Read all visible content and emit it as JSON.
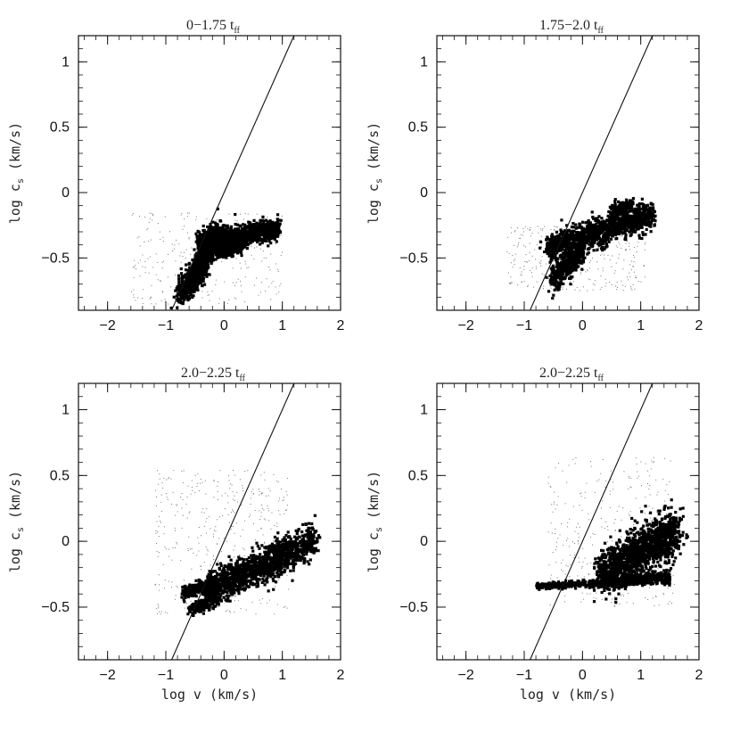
{
  "figure": {
    "xlabel": "log v (km/s)",
    "ylabel": "log c",
    "ylabel_sub": "s",
    "ylabel_unit": " (km/s)"
  },
  "chart_data": [
    {
      "type": "scatter",
      "title": "0−1.75 t",
      "title_sub": "ff",
      "xlim": [
        -2.5,
        2.0
      ],
      "ylim": [
        -0.9,
        1.2
      ],
      "xticks": [
        -2,
        -1,
        0,
        1,
        2
      ],
      "yticks": [
        -0.5,
        0,
        0.5,
        1
      ],
      "xticklabels": [
        "−2",
        "−1",
        "0",
        "1",
        "2"
      ],
      "yticklabels": [
        "−0.5",
        "0",
        "0.5",
        "1"
      ],
      "show_xlabel": false,
      "reference_line": {
        "x": [
          -0.9,
          1.2
        ],
        "y": [
          -0.9,
          1.2
        ]
      },
      "clusters": [
        {
          "x": [
            -0.45,
            0.95
          ],
          "y": [
            -0.38,
            -0.28
          ],
          "n": 1100,
          "spread": 0.03
        },
        {
          "x": [
            -0.55,
            -0.15
          ],
          "y": [
            -0.65,
            -0.35
          ],
          "n": 800,
          "spread": 0.05
        },
        {
          "x": [
            -0.8,
            -0.3
          ],
          "y": [
            -0.78,
            -0.55
          ],
          "n": 300,
          "spread": 0.05
        },
        {
          "x": [
            -0.15,
            0.35
          ],
          "y": [
            -0.47,
            -0.4
          ],
          "n": 250,
          "spread": 0.02
        }
      ],
      "sparse": {
        "x": [
          -1.6,
          1.0
        ],
        "y": [
          -0.85,
          -0.15
        ],
        "n": 260
      }
    },
    {
      "type": "scatter",
      "title": "1.75−2.0 t",
      "title_sub": "ff",
      "xlim": [
        -2.5,
        2.0
      ],
      "ylim": [
        -0.9,
        1.2
      ],
      "xticks": [
        -2,
        -1,
        0,
        1,
        2
      ],
      "yticks": [
        -0.5,
        0,
        0.5,
        1
      ],
      "xticklabels": [
        "−2",
        "−1",
        "0",
        "1",
        "2"
      ],
      "yticklabels": [
        "−0.5",
        "0",
        "0.5",
        "1"
      ],
      "show_xlabel": false,
      "reference_line": {
        "x": [
          -0.9,
          1.2
        ],
        "y": [
          -0.9,
          1.2
        ]
      },
      "clusters": [
        {
          "x": [
            -0.6,
            1.2
          ],
          "y": [
            -0.42,
            -0.17
          ],
          "n": 1200,
          "spread": 0.04
        },
        {
          "x": [
            -0.5,
            0.0
          ],
          "y": [
            -0.65,
            -0.45
          ],
          "n": 450,
          "spread": 0.04
        },
        {
          "x": [
            0.5,
            0.85
          ],
          "y": [
            -0.15,
            -0.1
          ],
          "n": 150,
          "spread": 0.02
        }
      ],
      "sparse": {
        "x": [
          -1.3,
          1.1
        ],
        "y": [
          -0.75,
          -0.25
        ],
        "n": 320
      }
    },
    {
      "type": "scatter",
      "title": "2.0−2.25 t",
      "title_sub": "ff",
      "xlim": [
        -2.5,
        2.0
      ],
      "ylim": [
        -0.9,
        1.2
      ],
      "xticks": [
        -2,
        -1,
        0,
        1,
        2
      ],
      "yticks": [
        -0.5,
        0,
        0.5,
        1
      ],
      "xticklabels": [
        "−2",
        "−1",
        "0",
        "1",
        "2"
      ],
      "yticklabels": [
        "−0.5",
        "0",
        "0.5",
        "1"
      ],
      "show_xlabel": true,
      "reference_line": {
        "x": [
          -0.9,
          1.2
        ],
        "y": [
          -0.9,
          1.2
        ]
      },
      "clusters": [
        {
          "x": [
            -0.3,
            1.55
          ],
          "y": [
            -0.38,
            0.0
          ],
          "n": 1400,
          "spread": 0.05
        },
        {
          "x": [
            -0.7,
            -0.1
          ],
          "y": [
            -0.4,
            -0.3
          ],
          "n": 350,
          "spread": 0.02
        },
        {
          "x": [
            -0.6,
            -0.2
          ],
          "y": [
            -0.53,
            -0.45
          ],
          "n": 150,
          "spread": 0.02
        }
      ],
      "sparse": {
        "x": [
          -1.2,
          1.1
        ],
        "y": [
          -0.55,
          0.55
        ],
        "n": 380
      }
    },
    {
      "type": "scatter",
      "title": "2.0−2.25 t",
      "title_sub": "ff",
      "xlim": [
        -2.5,
        2.0
      ],
      "ylim": [
        -0.9,
        1.2
      ],
      "xticks": [
        -2,
        -1,
        0,
        1,
        2
      ],
      "yticks": [
        -0.5,
        0,
        0.5,
        1
      ],
      "xticklabels": [
        "−2",
        "−1",
        "0",
        "1",
        "2"
      ],
      "yticklabels": [
        "−0.5",
        "0",
        "0.5",
        "1"
      ],
      "show_xlabel": true,
      "reference_line": {
        "x": [
          -0.9,
          1.2
        ],
        "y": [
          -0.9,
          1.2
        ]
      },
      "clusters": [
        {
          "x": [
            0.3,
            1.65
          ],
          "y": [
            -0.25,
            0.08
          ],
          "n": 1400,
          "spread": 0.07
        },
        {
          "x": [
            -0.8,
            1.5
          ],
          "y": [
            -0.34,
            -0.3
          ],
          "n": 500,
          "spread": 0.01
        },
        {
          "x": [
            0.4,
            1.5
          ],
          "y": [
            -0.3,
            -0.26
          ],
          "n": 250,
          "spread": 0.01
        }
      ],
      "sparse": {
        "x": [
          -0.6,
          1.6
        ],
        "y": [
          -0.5,
          0.65
        ],
        "n": 340
      }
    }
  ]
}
